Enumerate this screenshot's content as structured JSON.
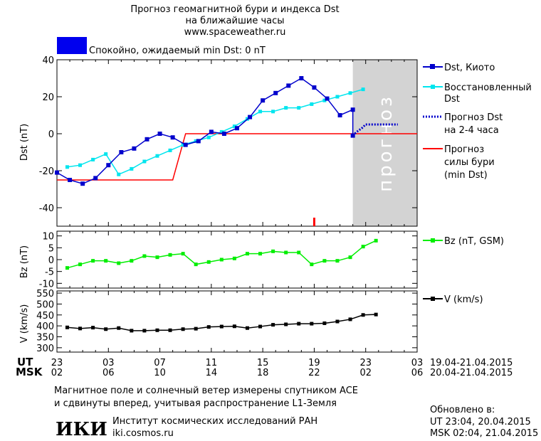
{
  "header": {
    "title1": "Прогноз геомагнитной бури и индекса Dst",
    "title2": "на ближайшие часы",
    "url": "www.spaceweather.ru",
    "status_color": "#0000ee",
    "status_text": "Спокойно, ожидаемый min Dst: 0 nT"
  },
  "colors": {
    "dst_kyoto": "#0000cc",
    "dst_restored": "#00e5ee",
    "dst_forecast": "#0000cc",
    "storm_forecast": "#ff0000",
    "bz": "#00ee00",
    "speed": "#000000",
    "forecast_zone": "#d3d3d3"
  },
  "forecast_zone_label": "прогноз",
  "legend": {
    "kyoto": "Dst, Киото",
    "restored1": "Восстановленный",
    "restored2": "Dst",
    "forecast1": "Прогноз Dst",
    "forecast2": "на 2-4 часа",
    "storm1": "Прогноз",
    "storm2": "силы бури",
    "storm3": "(min Dst)",
    "bz": "Bz (nT, GSM)",
    "v": "V (km/s)"
  },
  "axes": {
    "dst_ylabel": "Dst (nT)",
    "bz_ylabel": "Bz (nT)",
    "v_ylabel": "V (km/s)",
    "ut_label": "UT",
    "msk_label": "MSK",
    "ut_ticks": [
      "23",
      "03",
      "07",
      "11",
      "15",
      "19",
      "23",
      "03"
    ],
    "msk_ticks": [
      "02",
      "06",
      "10",
      "14",
      "18",
      "22",
      "02",
      "06"
    ],
    "ut_range": "19.04-21.04.2015",
    "msk_range": "20.04-21.04.2015"
  },
  "footer": {
    "note1": "Магнитное поле и солнечный ветер измерены спутником ACE",
    "note2": "и сдвинуты вперед, учитывая распространение L1-Земля",
    "logo": "ИКИ",
    "institute": "Институт космических исследований РАН",
    "site": "iki.cosmos.ru",
    "updated_label": "Обновлено в:",
    "updated_ut": "UT  23:04, 20.04.2015",
    "updated_msk": "MSK 02:04, 21.04.2015"
  },
  "chart_data": [
    {
      "type": "line",
      "x_unit": "hours since 23 UT 19.04",
      "xlim": [
        0,
        28
      ],
      "ylim": [
        -50,
        40
      ],
      "yticks": [
        -40,
        -20,
        0,
        20,
        40
      ],
      "forecast_zone_x": [
        23,
        28
      ],
      "series": [
        {
          "name": "Dst, Киото",
          "x": [
            0,
            1,
            2,
            3,
            4,
            5,
            6,
            7,
            8,
            9,
            10,
            11,
            12,
            13,
            14,
            15,
            16,
            17,
            18,
            19,
            20,
            21,
            22,
            23
          ],
          "y": [
            -21,
            -25,
            -27,
            -24,
            -17,
            -10,
            -8,
            -3,
            0,
            -2,
            -6,
            -4,
            1,
            0,
            3,
            9,
            18,
            22,
            26,
            30,
            25,
            19,
            10,
            13
          ]
        },
        {
          "name": "Восстановленный Dst",
          "x": [
            0.8,
            1.8,
            2.8,
            3.8,
            4.8,
            5.8,
            6.8,
            7.8,
            8.8,
            9.8,
            10.8,
            11.8,
            12.8,
            13.8,
            14.8,
            15.8,
            16.8,
            17.8,
            18.8,
            19.8,
            20.8,
            21.8,
            22.8,
            23.8
          ],
          "y": [
            -18,
            -17,
            -14,
            -11,
            -22,
            -19,
            -15,
            -12,
            -9,
            -6,
            -4,
            -2,
            1,
            4,
            8,
            12,
            12,
            14,
            14,
            16,
            18,
            20,
            22,
            24
          ]
        },
        {
          "name": "Прогноз Dst на 2-4 часа",
          "x": [
            23,
            23.3,
            23.7,
            24,
            24.5,
            25,
            25.5,
            26,
            26.5
          ],
          "y": [
            -1,
            1,
            3,
            5,
            5,
            5,
            5,
            5,
            5
          ]
        },
        {
          "name": "Прогноз силы бури (min Dst)",
          "x": [
            -1,
            9,
            10,
            23,
            28
          ],
          "y": [
            -25,
            -25,
            0,
            0,
            0
          ]
        }
      ],
      "extra_point": {
        "series": "Dst, Киото",
        "x": 23,
        "y": -1
      },
      "marker": {
        "x": 20,
        "color": "#ff0000"
      }
    },
    {
      "type": "line",
      "xlim": [
        0,
        28
      ],
      "ylim": [
        -12,
        12
      ],
      "yticks": [
        -10,
        -5,
        0,
        5,
        10
      ],
      "series": [
        {
          "name": "Bz (nT, GSM)",
          "x": [
            0.8,
            1.8,
            2.8,
            3.8,
            4.8,
            5.8,
            6.8,
            7.8,
            8.8,
            9.8,
            10.8,
            11.8,
            12.8,
            13.8,
            14.8,
            15.8,
            16.8,
            17.8,
            18.8,
            19.8,
            20.8,
            21.8,
            22.8,
            23.8,
            24.8
          ],
          "y": [
            -3.5,
            -2,
            -0.5,
            -0.5,
            -1.5,
            -0.5,
            1.5,
            1,
            2,
            2.5,
            -2,
            -1,
            0,
            0.5,
            2.5,
            2.5,
            3.5,
            3,
            3,
            -2,
            -0.5,
            -0.5,
            1,
            5.5,
            8
          ]
        }
      ]
    },
    {
      "type": "line",
      "xlim": [
        0,
        28
      ],
      "ylim": [
        280,
        560
      ],
      "yticks": [
        300,
        350,
        400,
        450,
        500,
        550
      ],
      "series": [
        {
          "name": "V (km/s)",
          "x": [
            0.8,
            1.8,
            2.8,
            3.8,
            4.8,
            5.8,
            6.8,
            7.8,
            8.8,
            9.8,
            10.8,
            11.8,
            12.8,
            13.8,
            14.8,
            15.8,
            16.8,
            17.8,
            18.8,
            19.8,
            20.8,
            21.8,
            22.8,
            23.8,
            24.8
          ],
          "y": [
            393,
            388,
            392,
            385,
            390,
            378,
            378,
            380,
            380,
            385,
            387,
            395,
            397,
            398,
            390,
            397,
            405,
            407,
            410,
            410,
            412,
            420,
            430,
            450,
            452
          ]
        }
      ]
    }
  ]
}
